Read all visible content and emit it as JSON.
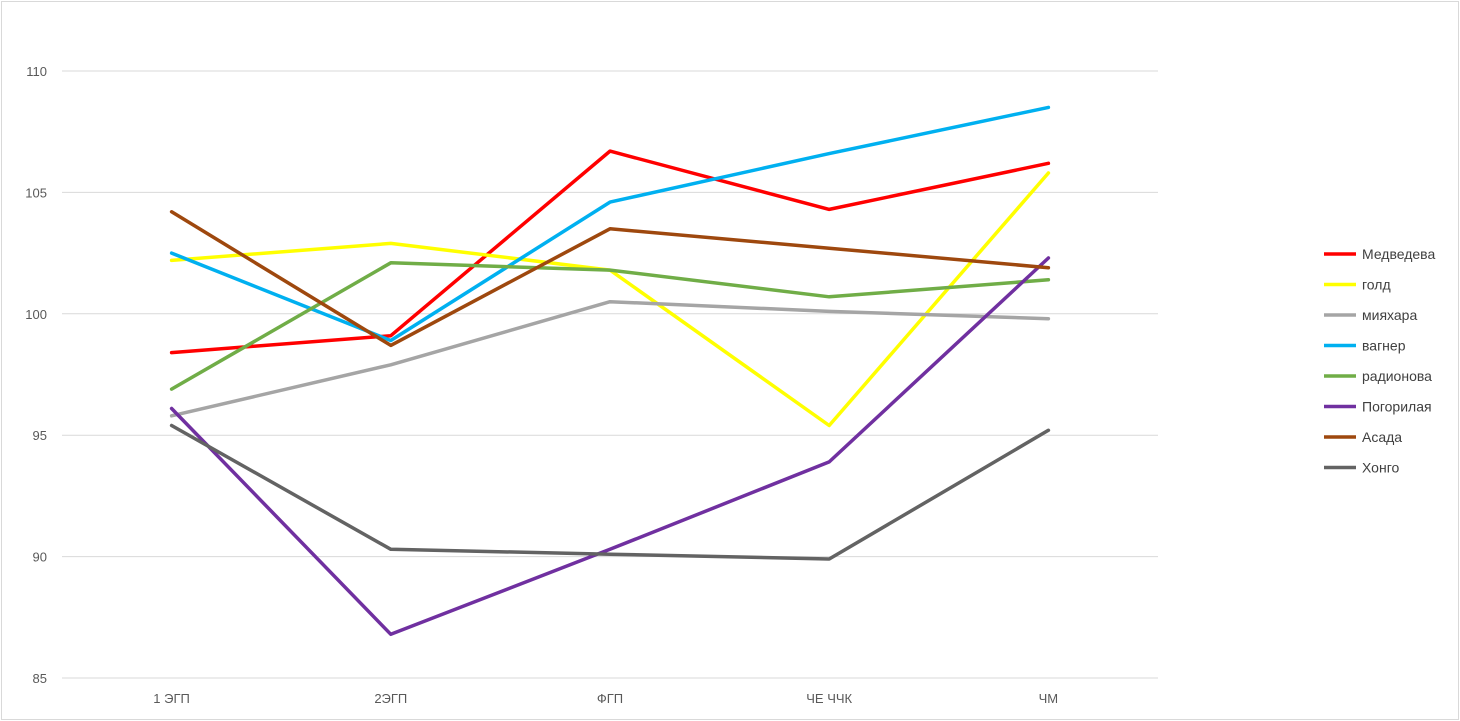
{
  "chart_data": {
    "type": "line",
    "title": "",
    "xlabel": "",
    "ylabel": "",
    "categories": [
      "1 ЭГП",
      "2ЭГП",
      "ФГП",
      "ЧЕ ЧЧК",
      "ЧМ"
    ],
    "ylim": [
      85,
      110
    ],
    "yticks": [
      85,
      90,
      95,
      100,
      105,
      110
    ],
    "grid": true,
    "legend_position": "right",
    "series": [
      {
        "name": "Медведева",
        "color": "#ff0000",
        "values": [
          98.4,
          99.1,
          106.7,
          104.3,
          106.2
        ]
      },
      {
        "name": "голд",
        "color": "#ffff00",
        "values": [
          102.2,
          102.9,
          101.8,
          95.4,
          105.8
        ]
      },
      {
        "name": "мияхара",
        "color": "#a5a5a5",
        "values": [
          95.8,
          97.9,
          100.5,
          100.1,
          99.8
        ]
      },
      {
        "name": "вагнер",
        "color": "#00b0f0",
        "values": [
          102.5,
          98.9,
          104.6,
          106.6,
          108.5
        ]
      },
      {
        "name": "радионова",
        "color": "#70ad47",
        "values": [
          96.9,
          102.1,
          101.8,
          100.7,
          101.4
        ]
      },
      {
        "name": "Погорилая",
        "color": "#7030a0",
        "values": [
          96.1,
          86.8,
          90.3,
          93.9,
          102.3
        ]
      },
      {
        "name": "Асада",
        "color": "#9e480e",
        "values": [
          104.2,
          98.7,
          103.5,
          102.7,
          101.9
        ]
      },
      {
        "name": "Хонго",
        "color": "#636363",
        "values": [
          95.4,
          90.3,
          90.1,
          89.9,
          95.2
        ]
      }
    ]
  }
}
